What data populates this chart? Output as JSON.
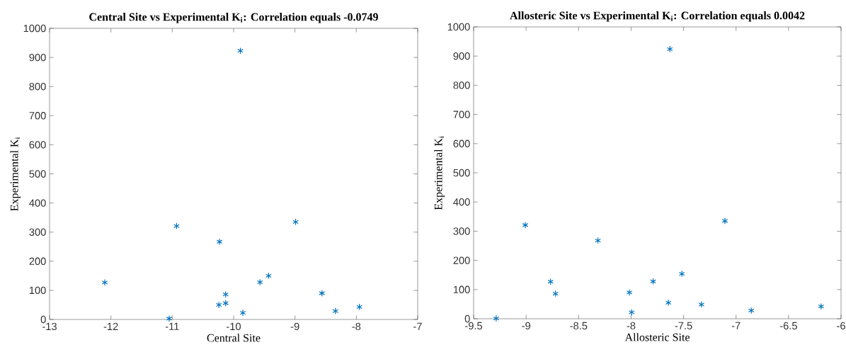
{
  "chart_data": [
    {
      "type": "scatter",
      "title": "Central Site vs Experimental K$_{i}$: Correlation equals -0.0749",
      "xlabel": "Central Site",
      "ylabel": "Experimental K$_{i}$",
      "x": [
        -12.1,
        -10.93,
        -11.05,
        -10.23,
        -10.24,
        -10.13,
        -10.13,
        -9.89,
        -9.85,
        -9.57,
        -9.43,
        -8.99,
        -8.56,
        -8.34,
        -7.95
      ],
      "values": [
        127,
        321,
        3,
        267,
        50,
        86,
        56,
        923,
        23,
        128,
        150,
        335,
        90,
        29,
        43
      ],
      "color": "#0072bd",
      "marker": "cross",
      "grid": false,
      "xlim": [
        -13,
        -7
      ],
      "xticks": [
        -13,
        -12,
        -11,
        -10,
        -9,
        -8,
        -7
      ],
      "ylim": [
        0,
        1000
      ],
      "yticks": [
        0,
        100,
        200,
        300,
        400,
        500,
        600,
        700,
        800,
        900,
        1000
      ]
    },
    {
      "type": "scatter",
      "title": "Allosteric Site vs Experimental K$_{i}$: Correlation equals 0.0042",
      "xlabel": "Allosteric Site",
      "ylabel": "Experimental K$_{i}$",
      "x": [
        -9.285,
        -9.008,
        -8.767,
        -8.72,
        -8.316,
        -8.016,
        -7.995,
        -7.79,
        -7.645,
        -7.63,
        -7.516,
        -7.33,
        -7.106,
        -6.855,
        -6.19
      ],
      "values": [
        1,
        321,
        127,
        86,
        268,
        90,
        22,
        128,
        55,
        924,
        154,
        49,
        335,
        28,
        42
      ],
      "color": "#0072bd",
      "marker": "cross",
      "grid": false,
      "xlim": [
        -9.5,
        -6
      ],
      "xticks": [
        -9.5,
        -9,
        -8.5,
        -8,
        -7.5,
        -7,
        -6.5,
        -6
      ],
      "ylim": [
        0,
        1000
      ],
      "yticks": [
        0,
        100,
        200,
        300,
        400,
        500,
        600,
        700,
        800,
        900,
        1000
      ]
    }
  ]
}
